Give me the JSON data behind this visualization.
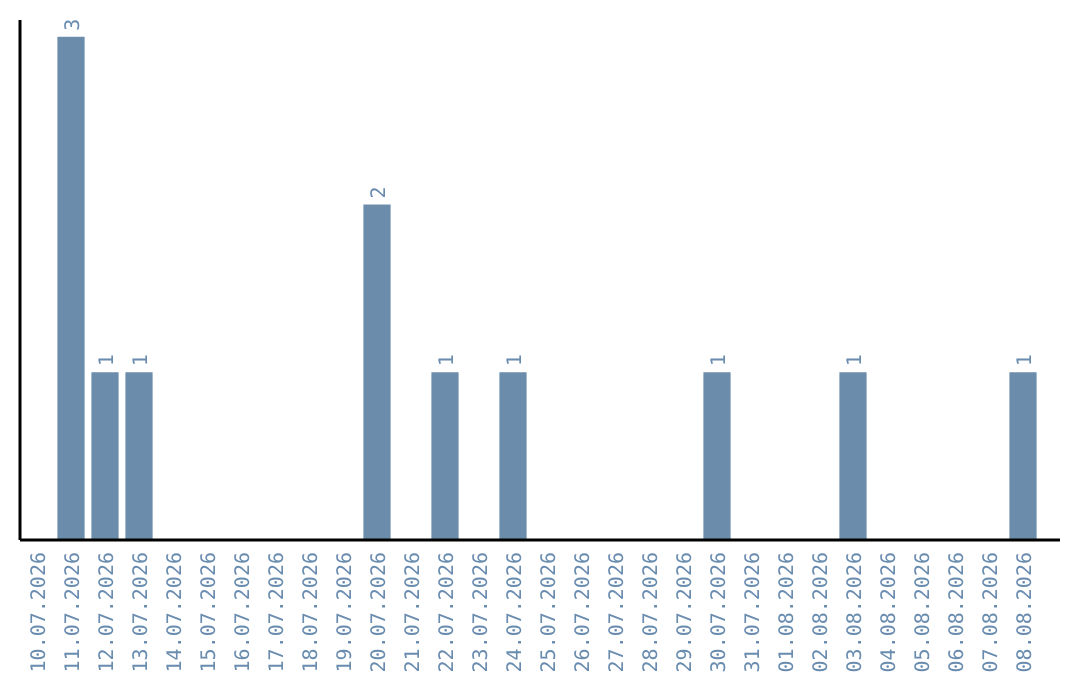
{
  "chart_data": {
    "type": "bar",
    "categories": [
      "10.07.2026",
      "11.07.2026",
      "12.07.2026",
      "13.07.2026",
      "14.07.2026",
      "15.07.2026",
      "16.07.2026",
      "17.07.2026",
      "18.07.2026",
      "19.07.2026",
      "20.07.2026",
      "21.07.2026",
      "22.07.2026",
      "23.07.2026",
      "24.07.2026",
      "25.07.2026",
      "26.07.2026",
      "27.07.2026",
      "28.07.2026",
      "29.07.2026",
      "30.07.2026",
      "31.07.2026",
      "01.08.2026",
      "02.08.2026",
      "03.08.2026",
      "04.08.2026",
      "05.08.2026",
      "06.08.2026",
      "07.08.2026",
      "08.08.2026"
    ],
    "values": [
      0,
      3,
      1,
      1,
      0,
      0,
      0,
      0,
      0,
      0,
      2,
      0,
      1,
      0,
      1,
      0,
      0,
      0,
      0,
      0,
      1,
      0,
      0,
      0,
      1,
      0,
      0,
      0,
      0,
      1
    ],
    "value_labels": [
      null,
      "3",
      "1",
      "1",
      null,
      null,
      null,
      null,
      null,
      null,
      "2",
      null,
      "1",
      null,
      "1",
      null,
      null,
      null,
      null,
      null,
      "1",
      null,
      null,
      null,
      "1",
      null,
      null,
      null,
      null,
      "1"
    ],
    "color": "#6b8cab",
    "ylim": [
      0,
      3.1
    ],
    "tick_labels": "x"
  }
}
